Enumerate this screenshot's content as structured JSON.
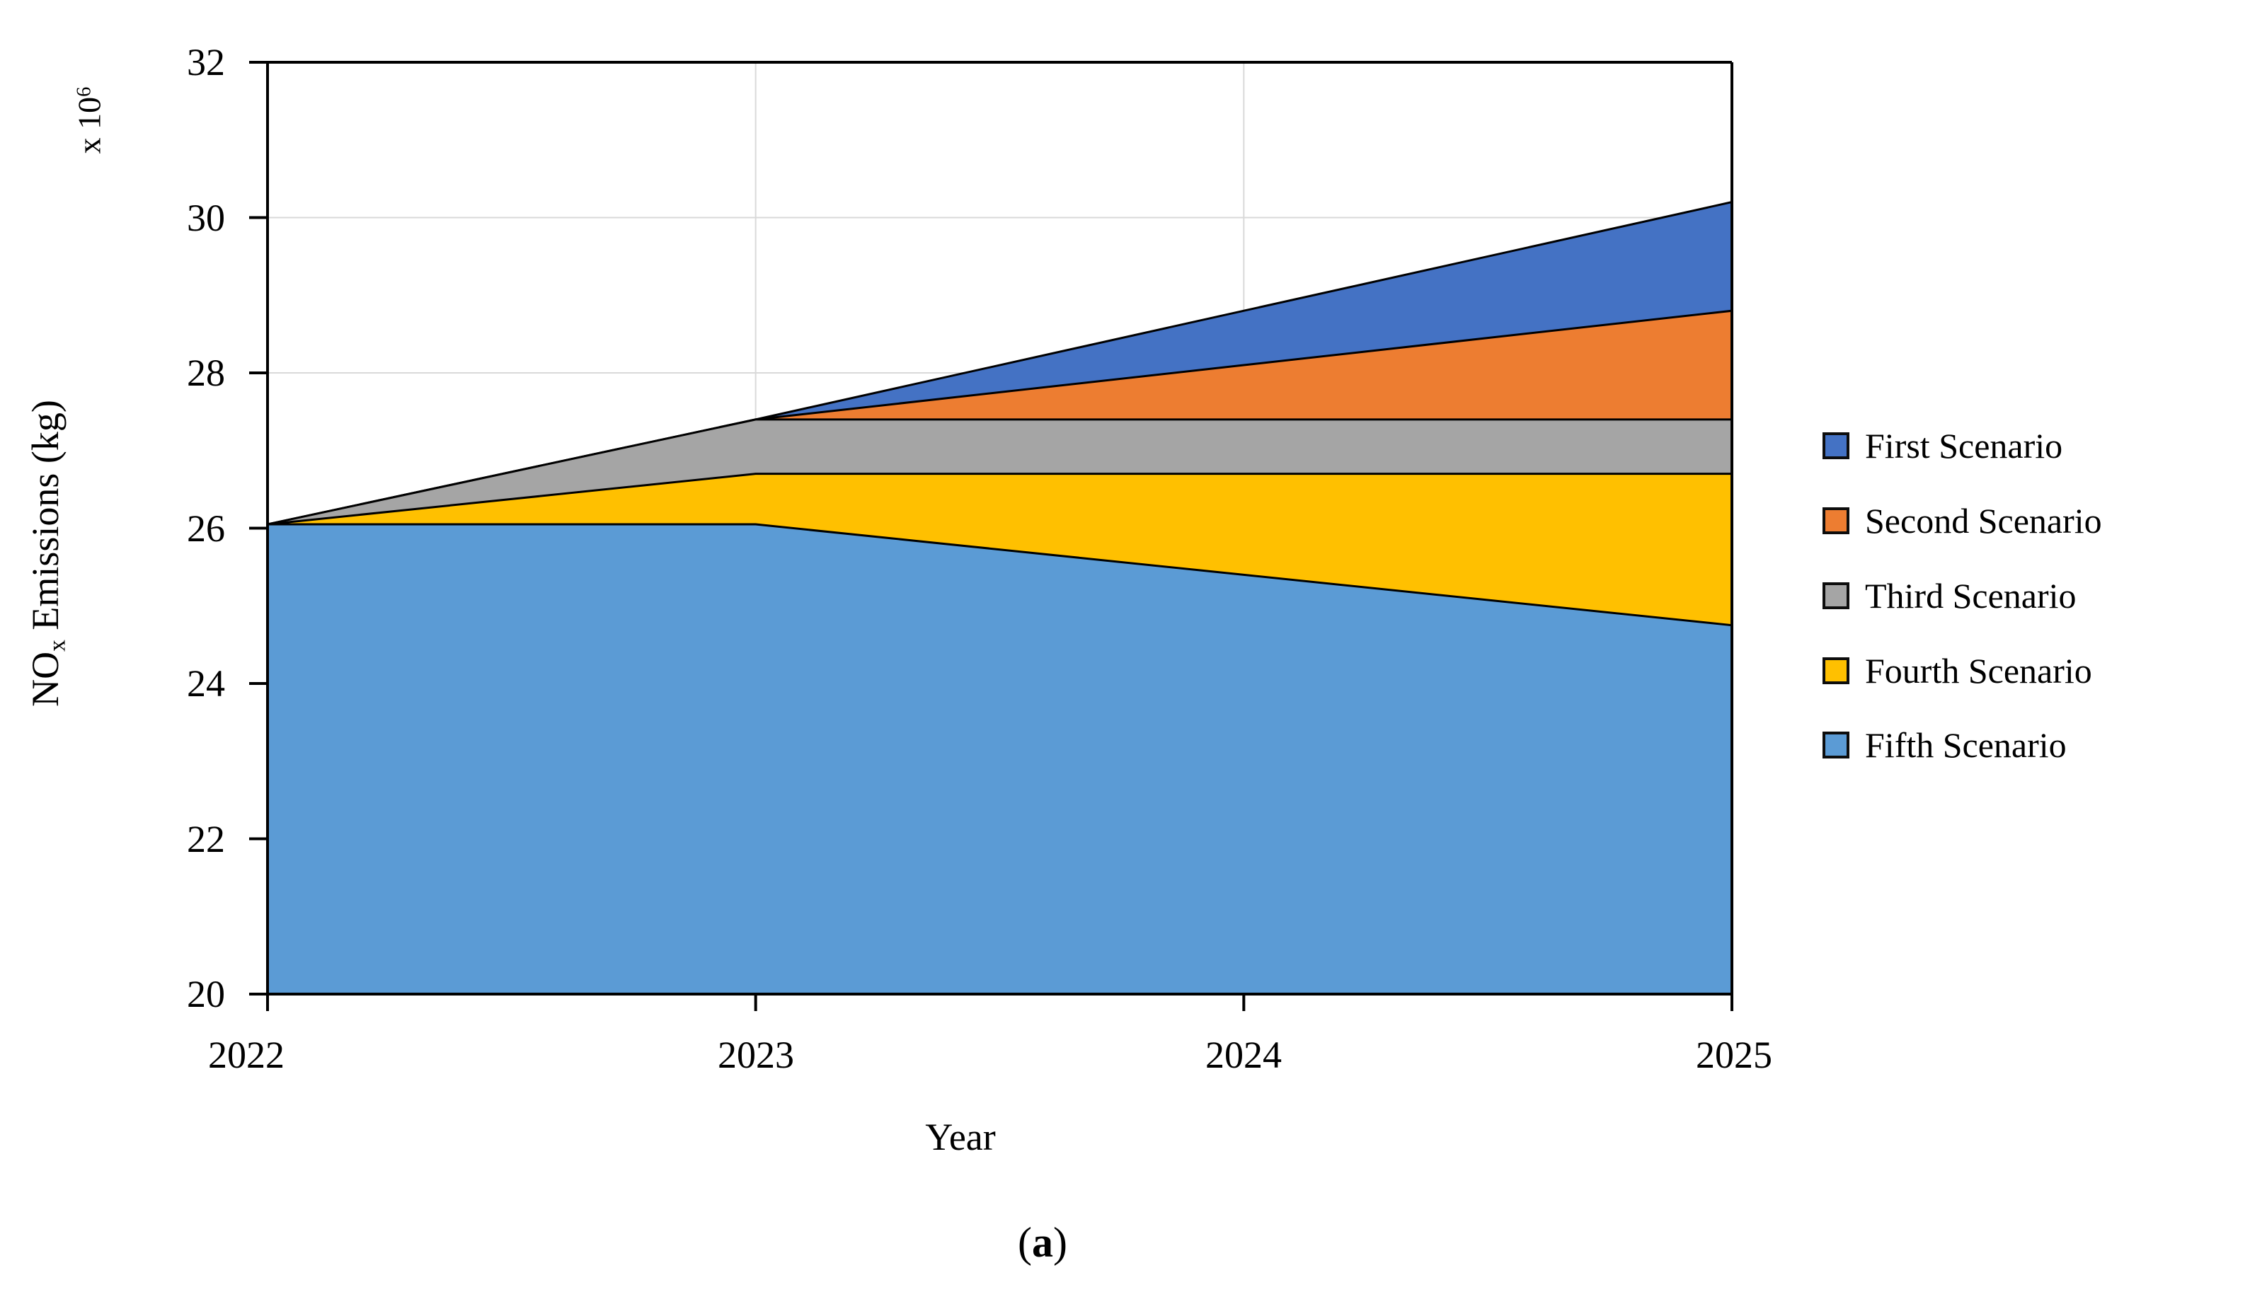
{
  "figure": {
    "x_axis_title": "Year",
    "y_axis_title_prefix": "NO",
    "y_axis_title_sub": "x",
    "y_axis_title_suffix": " Emissions (kg)",
    "y_multiplier_base": "x 10",
    "y_multiplier_exp": "6",
    "caption_open": "(",
    "caption_letter": "a",
    "caption_close": ")"
  },
  "chart_data": {
    "type": "area",
    "mode": "overlap",
    "title": "",
    "xlabel": "Year",
    "ylabel": "NOx Emissions (kg)",
    "y_unit_multiplier": "x 10^6",
    "x": [
      2022,
      2023,
      2024,
      2025
    ],
    "x_tick_labels": [
      "2022",
      "2023",
      "2024",
      "2025"
    ],
    "y_ticks": [
      32,
      30,
      28,
      26,
      24,
      22,
      20
    ],
    "y_tick_labels": [
      "32",
      "30",
      "28",
      "26",
      "24",
      "22",
      "20"
    ],
    "ylim": [
      20,
      32
    ],
    "xlim": [
      2022,
      2025
    ],
    "grid": true,
    "grid_x_years": [
      2023,
      2024
    ],
    "grid_y_values": [
      30,
      28,
      26,
      24,
      22
    ],
    "legend_position": "right-center",
    "series": [
      {
        "name": "First Scenario",
        "color": "#4472C4",
        "values": [
          26.05,
          27.4,
          28.8,
          30.2
        ]
      },
      {
        "name": "Second Scenario",
        "color": "#ED7D31",
        "values": [
          26.05,
          27.4,
          28.1,
          28.8
        ]
      },
      {
        "name": "Third Scenario",
        "color": "#A5A5A5",
        "values": [
          26.05,
          27.4,
          27.4,
          27.4
        ]
      },
      {
        "name": "Fourth Scenario",
        "color": "#FFC000",
        "values": [
          26.05,
          26.7,
          26.7,
          26.7
        ]
      },
      {
        "name": "Fifth Scenario",
        "color": "#5B9BD5",
        "values": [
          26.05,
          26.05,
          25.4,
          24.75
        ]
      }
    ],
    "colors": {
      "outline": "#000000",
      "gridline": "#D9D9D9",
      "axis": "#000000"
    }
  }
}
